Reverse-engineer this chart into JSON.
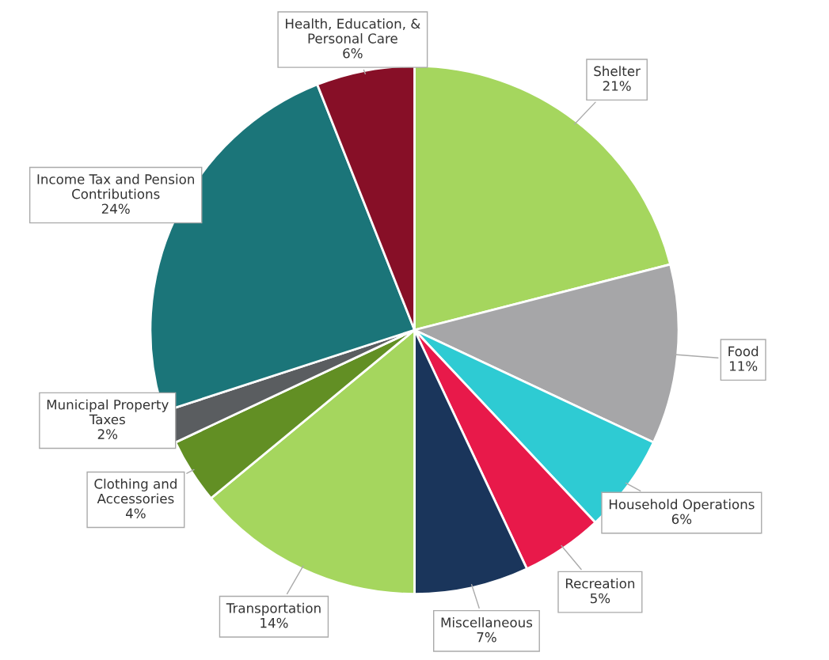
{
  "chart_data": {
    "type": "pie",
    "categories": [
      "Shelter",
      "Food",
      "Household Operations",
      "Recreation",
      "Miscellaneous",
      "Transportation",
      "Clothing and Accessories",
      "Municipal Property Taxes",
      "Income Tax and Pension Contributions",
      "Health, Education, & Personal Care"
    ],
    "values": [
      21,
      11,
      6,
      5,
      7,
      14,
      4,
      2,
      24,
      6
    ],
    "colors": [
      "#a5d65e",
      "#a6a6a8",
      "#2ecbd3",
      "#e8194a",
      "#1a355b",
      "#a5d65e",
      "#628f24",
      "#5a5d60",
      "#1b7579",
      "#870f27"
    ],
    "value_labels": [
      "21%",
      "11%",
      "6%",
      "5%",
      "7%",
      "14%",
      "4%",
      "2%",
      "24%",
      "6%"
    ]
  }
}
